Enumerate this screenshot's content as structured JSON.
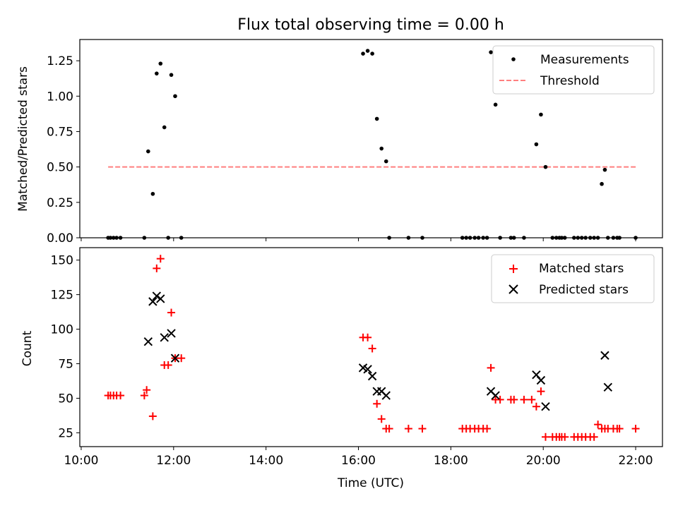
{
  "title": "Flux total observing time = 0.00 h",
  "chart_data": [
    {
      "type": "scatter",
      "ylabel": "Matched/Predicted stars",
      "ylim": [
        0,
        1.4
      ],
      "xlim_hours": [
        9.97,
        22.58
      ],
      "yticks": [
        0,
        0.25,
        0.5,
        0.75,
        1.0,
        1.25
      ],
      "yticklabels": [
        "0.00",
        "0.25",
        "0.50",
        "0.75",
        "1.00",
        "1.25"
      ],
      "legend_position": "top-right",
      "series": [
        {
          "name": "Measurements",
          "marker": "dot",
          "color": "#000000",
          "x": [
            "10:35",
            "10:38",
            "10:42",
            "10:46",
            "10:51",
            "11:22",
            "11:27",
            "11:33",
            "11:38",
            "11:43",
            "11:48",
            "11:53",
            "11:57",
            "12:02",
            "12:10",
            "16:06",
            "16:12",
            "16:18",
            "16:24",
            "16:30",
            "16:36",
            "16:40",
            "17:05",
            "17:23",
            "18:15",
            "18:20",
            "18:25",
            "18:31",
            "18:36",
            "18:42",
            "18:47",
            "18:52",
            "18:58",
            "19:04",
            "19:18",
            "19:22",
            "19:35",
            "19:51",
            "19:57",
            "20:03",
            "20:12",
            "20:17",
            "20:21",
            "20:24",
            "20:28",
            "20:40",
            "20:45",
            "20:50",
            "20:55",
            "21:01",
            "21:06",
            "21:11",
            "21:16",
            "21:20",
            "21:24",
            "21:31",
            "21:36",
            "21:39",
            "22:00"
          ],
          "y": [
            0,
            0,
            0,
            0,
            0,
            0,
            0.61,
            0.31,
            1.16,
            1.23,
            0.78,
            0,
            1.15,
            1.0,
            0,
            1.3,
            1.32,
            1.3,
            0.84,
            0.63,
            0.54,
            0,
            0,
            0,
            0,
            0,
            0,
            0,
            0,
            0,
            0,
            1.31,
            0.94,
            0,
            0,
            0,
            0,
            0.66,
            0.87,
            0.5,
            0,
            0,
            0,
            0,
            0,
            0,
            0,
            0,
            0,
            0,
            0,
            0,
            0.38,
            0.48,
            0,
            0,
            0,
            0,
            0
          ]
        },
        {
          "name": "Threshold",
          "style": "dashed",
          "color": "#ff7f7f",
          "x": [
            "10:35",
            "22:00"
          ],
          "y": [
            0.5,
            0.5
          ]
        }
      ]
    },
    {
      "type": "scatter",
      "xlabel": "Time (UTC)",
      "ylabel": "Count",
      "ylim": [
        15,
        159
      ],
      "xlim_hours": [
        9.97,
        22.58
      ],
      "xticks": [
        "10:00",
        "12:00",
        "14:00",
        "16:00",
        "18:00",
        "20:00",
        "22:00"
      ],
      "yticks": [
        25,
        50,
        75,
        100,
        125,
        150
      ],
      "legend_position": "top-right",
      "series": [
        {
          "name": "Matched stars",
          "marker": "plus",
          "color": "#ff0000",
          "x": [
            "10:35",
            "10:38",
            "10:42",
            "10:46",
            "10:51",
            "11:22",
            "11:25",
            "11:33",
            "11:38",
            "11:43",
            "11:48",
            "11:53",
            "11:57",
            "12:02",
            "12:10",
            "16:06",
            "16:12",
            "16:18",
            "16:24",
            "16:30",
            "16:36",
            "16:40",
            "17:05",
            "17:23",
            "18:15",
            "18:20",
            "18:25",
            "18:31",
            "18:36",
            "18:42",
            "18:47",
            "18:52",
            "18:58",
            "19:04",
            "19:18",
            "19:22",
            "19:35",
            "19:45",
            "19:51",
            "19:57",
            "20:03",
            "20:12",
            "20:17",
            "20:21",
            "20:24",
            "20:28",
            "20:40",
            "20:45",
            "20:50",
            "20:55",
            "21:01",
            "21:06",
            "21:11",
            "21:16",
            "21:20",
            "21:24",
            "21:31",
            "21:36",
            "21:39",
            "22:00"
          ],
          "y": [
            52,
            52,
            52,
            52,
            52,
            52,
            56,
            37,
            144,
            151,
            74,
            74,
            112,
            79,
            79,
            94,
            94,
            86,
            46,
            35,
            28,
            28,
            28,
            28,
            28,
            28,
            28,
            28,
            28,
            28,
            28,
            72,
            49,
            49,
            49,
            49,
            49,
            49,
            44,
            55,
            22,
            22,
            22,
            22,
            22,
            22,
            22,
            22,
            22,
            22,
            22,
            22,
            31,
            28,
            28,
            28,
            28,
            28,
            28,
            28
          ]
        },
        {
          "name": "Predicted stars",
          "marker": "x",
          "color": "#000000",
          "x": [
            "11:27",
            "11:33",
            "11:38",
            "11:43",
            "11:48",
            "11:57",
            "12:02",
            "16:06",
            "16:12",
            "16:18",
            "16:24",
            "16:30",
            "16:36",
            "18:52",
            "18:58",
            "19:51",
            "19:57",
            "20:03",
            "21:20",
            "21:24"
          ],
          "y": [
            91,
            120,
            124,
            122,
            94,
            97,
            79,
            72,
            71,
            66,
            55,
            55,
            52,
            55,
            52,
            67,
            63,
            44,
            81,
            58
          ]
        }
      ]
    }
  ]
}
